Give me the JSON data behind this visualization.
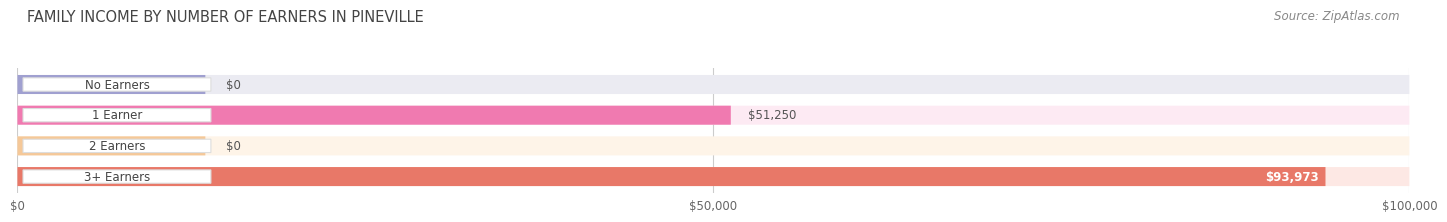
{
  "title": "FAMILY INCOME BY NUMBER OF EARNERS IN PINEVILLE",
  "source": "Source: ZipAtlas.com",
  "categories": [
    "No Earners",
    "1 Earner",
    "2 Earners",
    "3+ Earners"
  ],
  "values": [
    0,
    51250,
    0,
    93973
  ],
  "bar_colors": [
    "#a0a0d0",
    "#f07ab0",
    "#f5c898",
    "#e87868"
  ],
  "bar_bg_colors": [
    "#ebebf2",
    "#fdeaf3",
    "#fef4e8",
    "#fde8e4"
  ],
  "value_labels": [
    "$0",
    "$51,250",
    "$0",
    "$93,973"
  ],
  "xlim": [
    0,
    100000
  ],
  "xtick_values": [
    0,
    50000,
    100000
  ],
  "xtick_labels": [
    "$0",
    "$50,000",
    "$100,000"
  ],
  "title_fontsize": 10.5,
  "source_fontsize": 8.5,
  "background_color": "#ffffff",
  "pill_bg": "#ffffff",
  "pill_edge": "#dddddd",
  "bar_row_bg": "#f0f0f0"
}
